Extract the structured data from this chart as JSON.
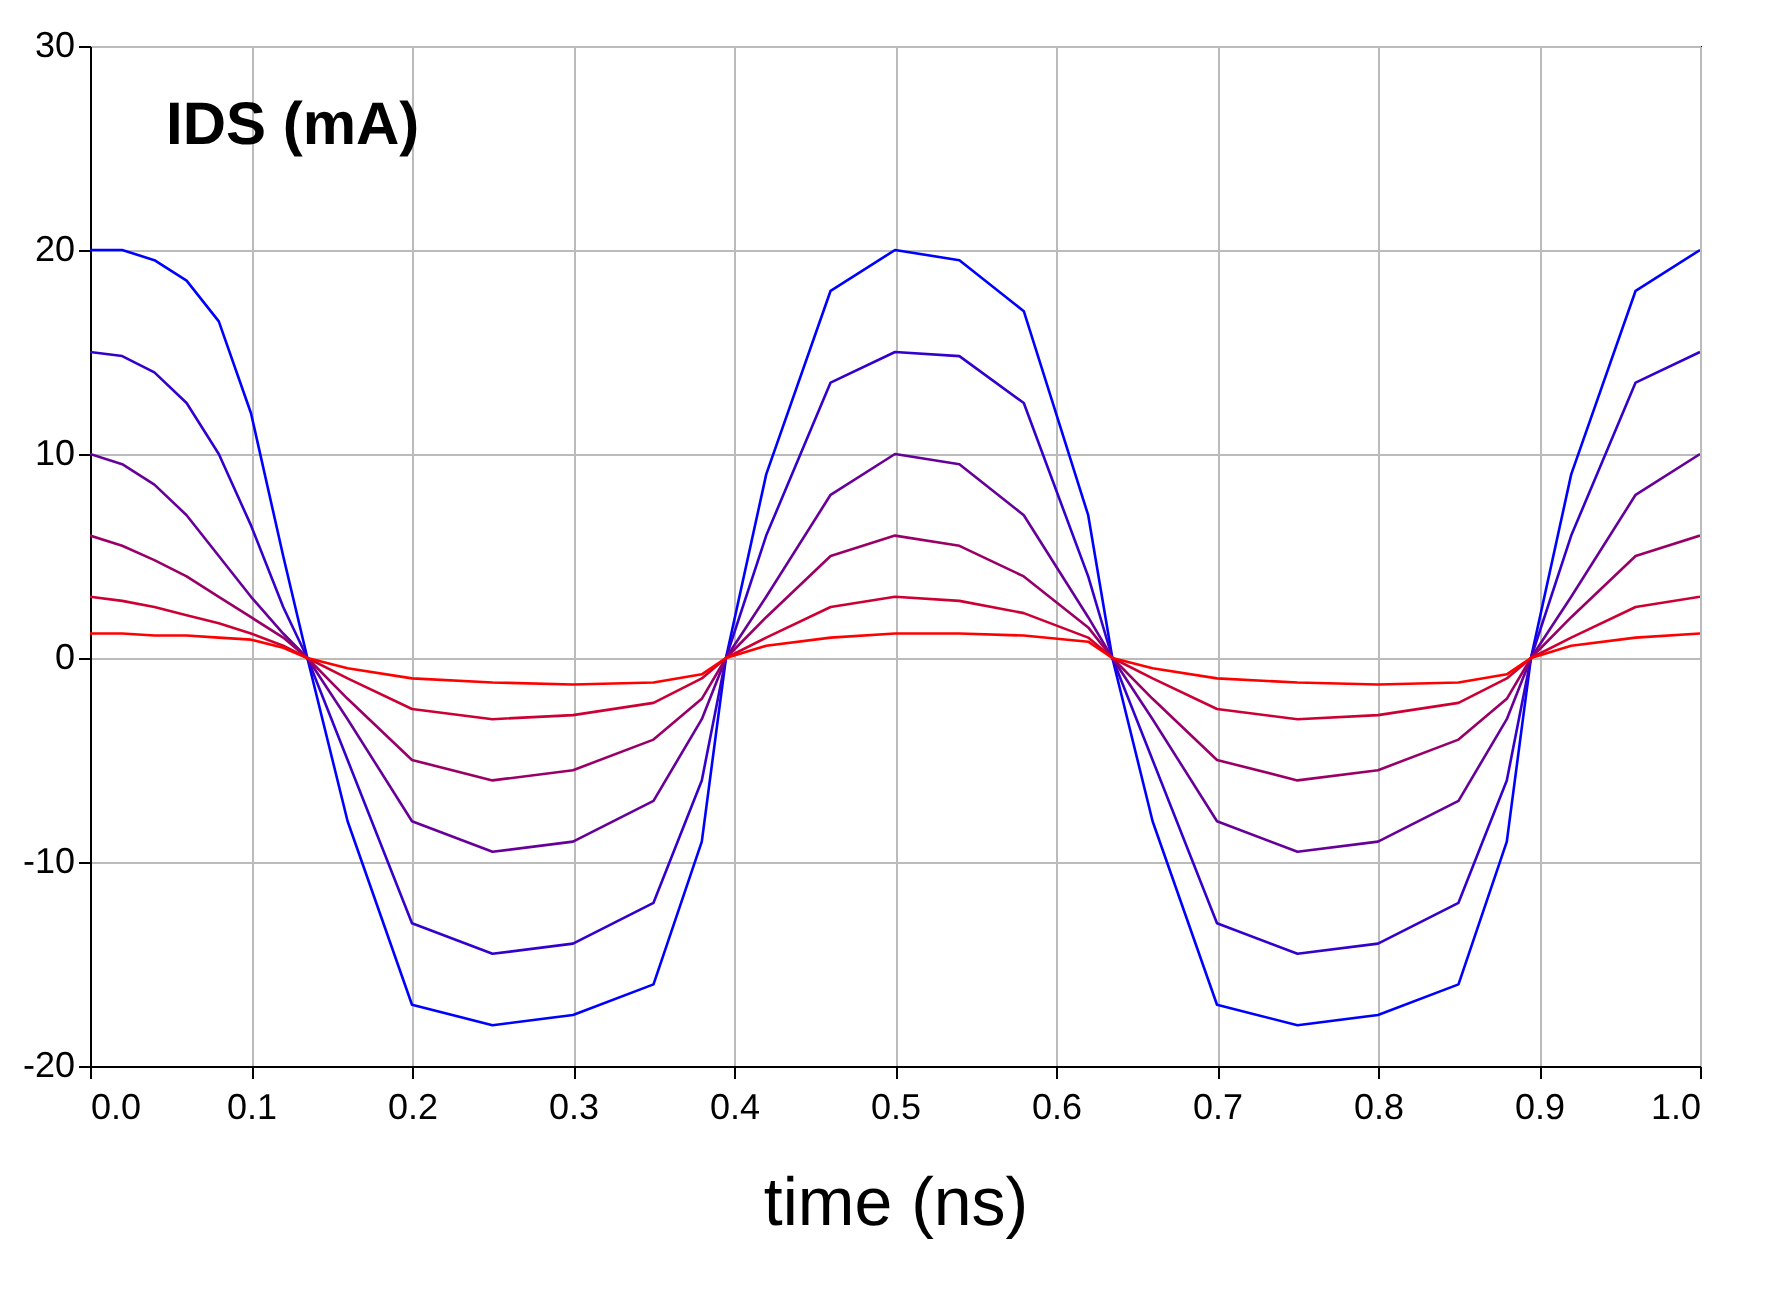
{
  "chart_data": {
    "type": "line",
    "xlabel": "time (ns)",
    "annotations": [
      "IDS (mA)"
    ],
    "x": [
      0,
      0.02,
      0.04,
      0.06,
      0.08,
      0.1,
      0.12,
      0.135,
      0.16,
      0.2,
      0.25,
      0.3,
      0.35,
      0.38,
      0.395,
      0.42,
      0.46,
      0.5,
      0.54,
      0.58,
      0.62,
      0.635,
      0.66,
      0.7,
      0.75,
      0.8,
      0.85,
      0.88,
      0.895,
      0.92,
      0.96,
      1.0
    ],
    "xlim": [
      0,
      1.0
    ],
    "xticks": [
      {
        "value": 0,
        "label": "0.0"
      },
      0.1,
      0.2,
      0.3,
      0.4,
      0.5,
      0.6,
      0.7,
      0.8,
      0.9,
      {
        "value": 1,
        "label": "1.0"
      }
    ],
    "ylim": [
      -20,
      30
    ],
    "yticks": [
      -20,
      -10,
      0,
      10,
      20,
      30
    ],
    "grid": true,
    "line_style": "solid",
    "series": [
      {
        "color": "#0000ff",
        "values": [
          20,
          20,
          19.5,
          18.5,
          16.5,
          12,
          5,
          0,
          -8,
          -17,
          -18,
          -17.5,
          -16,
          -9,
          0,
          9,
          18,
          20,
          19.5,
          17,
          7,
          0,
          -8,
          -17,
          -18,
          -17.5,
          -16,
          -9,
          0,
          9,
          18,
          20
        ]
      },
      {
        "color": "#3300cc",
        "values": [
          15,
          14.8,
          14,
          12.5,
          10,
          6.5,
          2.5,
          0,
          -5,
          -13,
          -14.5,
          -14,
          -12,
          -6,
          0,
          6,
          13.5,
          15,
          14.8,
          12.5,
          4,
          0,
          -5,
          -13,
          -14.5,
          -14,
          -12,
          -6,
          0,
          6,
          13.5,
          15
        ]
      },
      {
        "color": "#660099",
        "values": [
          10,
          9.5,
          8.5,
          7,
          5,
          3,
          1.2,
          0,
          -3,
          -8,
          -9.5,
          -9,
          -7,
          -3,
          0,
          3,
          8,
          10,
          9.5,
          7,
          2,
          0,
          -3,
          -8,
          -9.5,
          -9,
          -7,
          -3,
          0,
          3,
          8,
          10
        ]
      },
      {
        "color": "#990066",
        "values": [
          6,
          5.5,
          4.8,
          4,
          3,
          2,
          1,
          0,
          -2,
          -5,
          -6,
          -5.5,
          -4,
          -2,
          0,
          2,
          5,
          6,
          5.5,
          4,
          1.5,
          0,
          -2,
          -5,
          -6,
          -5.5,
          -4,
          -2,
          0,
          2,
          5,
          6
        ]
      },
      {
        "color": "#cc0033",
        "values": [
          3,
          2.8,
          2.5,
          2.1,
          1.7,
          1.2,
          0.6,
          0,
          -1,
          -2.5,
          -3,
          -2.8,
          -2.2,
          -1,
          0,
          1,
          2.5,
          3,
          2.8,
          2.2,
          1,
          0,
          -1,
          -2.5,
          -3,
          -2.8,
          -2.2,
          -1,
          0,
          1,
          2.5,
          3
        ]
      },
      {
        "color": "#ff0000",
        "values": [
          1.2,
          1.2,
          1.1,
          1.1,
          1,
          0.9,
          0.5,
          0,
          -0.5,
          -1,
          -1.2,
          -1.3,
          -1.2,
          -0.8,
          0,
          0.6,
          1,
          1.2,
          1.2,
          1.1,
          0.8,
          0,
          -0.5,
          -1,
          -1.2,
          -1.3,
          -1.2,
          -0.8,
          0,
          0.6,
          1,
          1.2
        ]
      }
    ]
  }
}
